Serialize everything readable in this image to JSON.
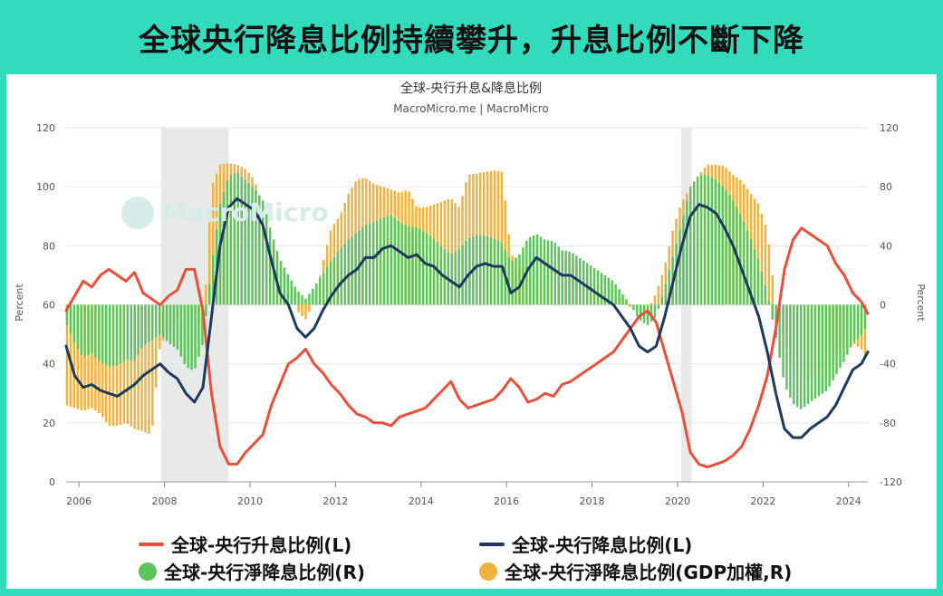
{
  "banner": {
    "title": "全球央行降息比例持續攀升，升息比例不斷下降"
  },
  "chart_data": {
    "type": "line",
    "title": "全球-央行升息&降息比例",
    "subtitle": "MacroMicro.me | MacroMicro",
    "watermark": "MacroMicro",
    "ylabel_left": "Percent",
    "ylabel_right": "Percent",
    "ylim_left": [
      0,
      120
    ],
    "ylim_right": [
      -120,
      120
    ],
    "yticks_left": [
      0,
      20,
      40,
      60,
      80,
      100,
      120
    ],
    "yticks_right": [
      -120,
      -80,
      -40,
      0,
      40,
      80,
      120
    ],
    "xlim": [
      2005.7,
      2024.45
    ],
    "xticks": [
      2006,
      2008,
      2010,
      2012,
      2014,
      2016,
      2018,
      2020,
      2022,
      2024
    ],
    "recessions": [
      [
        2007.92,
        2009.5
      ],
      [
        2020.08,
        2020.33
      ]
    ],
    "colors": {
      "hike": "#e8503a",
      "cut": "#1c3a5e",
      "net_green": "#5cc45c",
      "net_gdp": "#f2b13c",
      "recession": "#e8eaea"
    },
    "series": [
      {
        "name": "全球-央行升息比例(L)",
        "axis": "left",
        "kind": "line",
        "color": "#e8503a",
        "x": [
          2005.7,
          2005.9,
          2006.1,
          2006.3,
          2006.5,
          2006.7,
          2006.9,
          2007.1,
          2007.3,
          2007.5,
          2007.7,
          2007.9,
          2008.1,
          2008.3,
          2008.5,
          2008.7,
          2008.9,
          2009.1,
          2009.3,
          2009.5,
          2009.7,
          2009.9,
          2010.1,
          2010.3,
          2010.5,
          2010.7,
          2010.9,
          2011.1,
          2011.3,
          2011.5,
          2011.7,
          2011.9,
          2012.1,
          2012.3,
          2012.5,
          2012.7,
          2012.9,
          2013.1,
          2013.3,
          2013.5,
          2013.7,
          2013.9,
          2014.1,
          2014.3,
          2014.5,
          2014.7,
          2014.9,
          2015.1,
          2015.3,
          2015.5,
          2015.7,
          2015.9,
          2016.1,
          2016.3,
          2016.5,
          2016.7,
          2016.9,
          2017.1,
          2017.3,
          2017.5,
          2017.7,
          2017.9,
          2018.1,
          2018.3,
          2018.5,
          2018.7,
          2018.9,
          2019.1,
          2019.3,
          2019.5,
          2019.7,
          2019.9,
          2020.1,
          2020.3,
          2020.5,
          2020.7,
          2020.9,
          2021.1,
          2021.3,
          2021.5,
          2021.7,
          2021.9,
          2022.1,
          2022.3,
          2022.5,
          2022.7,
          2022.9,
          2023.1,
          2023.3,
          2023.5,
          2023.7,
          2023.9,
          2024.1,
          2024.3,
          2024.45
        ],
        "y": [
          58,
          63,
          68,
          66,
          70,
          72,
          70,
          68,
          71,
          64,
          62,
          60,
          63,
          65,
          72,
          72,
          58,
          30,
          12,
          6,
          6,
          10,
          13,
          16,
          26,
          33,
          40,
          42,
          45,
          40,
          37,
          33,
          30,
          26,
          23,
          22,
          20,
          20,
          19,
          22,
          23,
          24,
          25,
          28,
          31,
          34,
          28,
          25,
          26,
          27,
          28,
          31,
          35,
          32,
          27,
          28,
          30,
          29,
          33,
          34,
          36,
          38,
          40,
          42,
          44,
          48,
          52,
          56,
          58,
          54,
          44,
          34,
          24,
          10,
          6,
          5,
          6,
          7,
          9,
          12,
          18,
          26,
          36,
          52,
          72,
          82,
          86,
          84,
          82,
          80,
          74,
          70,
          64,
          61,
          57
        ]
      },
      {
        "name": "全球-央行降息比例(L)",
        "axis": "left",
        "kind": "line",
        "color": "#1c3a5e",
        "x": [
          2005.7,
          2005.9,
          2006.1,
          2006.3,
          2006.5,
          2006.7,
          2006.9,
          2007.1,
          2007.3,
          2007.5,
          2007.7,
          2007.9,
          2008.1,
          2008.3,
          2008.5,
          2008.7,
          2008.9,
          2009.1,
          2009.3,
          2009.5,
          2009.7,
          2009.9,
          2010.1,
          2010.3,
          2010.5,
          2010.7,
          2010.9,
          2011.1,
          2011.3,
          2011.5,
          2011.7,
          2011.9,
          2012.1,
          2012.3,
          2012.5,
          2012.7,
          2012.9,
          2013.1,
          2013.3,
          2013.5,
          2013.7,
          2013.9,
          2014.1,
          2014.3,
          2014.5,
          2014.7,
          2014.9,
          2015.1,
          2015.3,
          2015.5,
          2015.7,
          2015.9,
          2016.1,
          2016.3,
          2016.5,
          2016.7,
          2016.9,
          2017.1,
          2017.3,
          2017.5,
          2017.7,
          2017.9,
          2018.1,
          2018.3,
          2018.5,
          2018.7,
          2018.9,
          2019.1,
          2019.3,
          2019.5,
          2019.7,
          2019.9,
          2020.1,
          2020.3,
          2020.5,
          2020.7,
          2020.9,
          2021.1,
          2021.3,
          2021.5,
          2021.7,
          2021.9,
          2022.1,
          2022.3,
          2022.5,
          2022.7,
          2022.9,
          2023.1,
          2023.3,
          2023.5,
          2023.7,
          2023.9,
          2024.1,
          2024.3,
          2024.45
        ],
        "y": [
          46,
          36,
          32,
          33,
          31,
          30,
          29,
          31,
          33,
          36,
          38,
          40,
          37,
          35,
          30,
          27,
          32,
          56,
          80,
          93,
          96,
          94,
          92,
          87,
          75,
          64,
          60,
          52,
          49,
          52,
          58,
          63,
          67,
          70,
          72,
          76,
          76,
          79,
          80,
          78,
          76,
          77,
          74,
          73,
          70,
          68,
          66,
          70,
          73,
          74,
          73,
          73,
          64,
          66,
          72,
          76,
          74,
          72,
          70,
          70,
          68,
          66,
          64,
          62,
          60,
          56,
          52,
          46,
          44,
          46,
          56,
          68,
          80,
          90,
          94,
          93,
          91,
          86,
          80,
          72,
          64,
          56,
          44,
          30,
          18,
          15,
          15,
          18,
          20,
          22,
          26,
          32,
          38,
          40,
          44
        ]
      },
      {
        "name": "全球-央行淨降息比例(R)",
        "axis": "right",
        "kind": "bar",
        "color": "#5cc45c",
        "x": [
          2005.7,
          2005.9,
          2006.1,
          2006.3,
          2006.5,
          2006.7,
          2006.9,
          2007.1,
          2007.3,
          2007.5,
          2007.7,
          2007.9,
          2008.1,
          2008.3,
          2008.5,
          2008.7,
          2008.9,
          2009.1,
          2009.3,
          2009.5,
          2009.7,
          2009.9,
          2010.1,
          2010.3,
          2010.5,
          2010.7,
          2010.9,
          2011.1,
          2011.3,
          2011.5,
          2011.7,
          2011.9,
          2012.1,
          2012.3,
          2012.5,
          2012.7,
          2012.9,
          2013.1,
          2013.3,
          2013.5,
          2013.7,
          2013.9,
          2014.1,
          2014.3,
          2014.5,
          2014.7,
          2014.9,
          2015.1,
          2015.3,
          2015.5,
          2015.7,
          2015.9,
          2016.1,
          2016.3,
          2016.5,
          2016.7,
          2016.9,
          2017.1,
          2017.3,
          2017.5,
          2017.7,
          2017.9,
          2018.1,
          2018.3,
          2018.5,
          2018.7,
          2018.9,
          2019.1,
          2019.3,
          2019.5,
          2019.7,
          2019.9,
          2020.1,
          2020.3,
          2020.5,
          2020.7,
          2020.9,
          2021.1,
          2021.3,
          2021.5,
          2021.7,
          2021.9,
          2022.1,
          2022.3,
          2022.5,
          2022.7,
          2022.9,
          2023.1,
          2023.3,
          2023.5,
          2023.7,
          2023.9,
          2024.1,
          2024.3,
          2024.45
        ],
        "y": [
          -12,
          -27,
          -36,
          -33,
          -39,
          -42,
          -41,
          -37,
          -38,
          -28,
          -24,
          -20,
          -26,
          -30,
          -42,
          -45,
          -26,
          26,
          68,
          87,
          90,
          84,
          79,
          71,
          49,
          31,
          20,
          10,
          4,
          12,
          21,
          30,
          37,
          44,
          49,
          54,
          56,
          59,
          61,
          56,
          53,
          53,
          49,
          45,
          39,
          34,
          38,
          45,
          47,
          47,
          45,
          42,
          29,
          34,
          45,
          48,
          44,
          43,
          37,
          36,
          32,
          28,
          24,
          20,
          16,
          8,
          0,
          -10,
          -14,
          -8,
          12,
          34,
          56,
          80,
          88,
          88,
          85,
          79,
          71,
          60,
          46,
          30,
          8,
          -22,
          -54,
          -67,
          -71,
          -66,
          -62,
          -58,
          -48,
          -38,
          -26,
          -21,
          -13
        ]
      },
      {
        "name": "全球-央行淨降息比例(GDP加權,R)",
        "axis": "right",
        "kind": "bar",
        "color": "#f2b13c",
        "x": [
          2005.7,
          2005.9,
          2006.1,
          2006.3,
          2006.5,
          2006.7,
          2006.9,
          2007.1,
          2007.3,
          2007.5,
          2007.7,
          2007.9,
          2008.1,
          2008.3,
          2008.5,
          2008.7,
          2008.9,
          2009.1,
          2009.3,
          2009.5,
          2009.7,
          2009.9,
          2010.1,
          2010.3,
          2010.5,
          2010.7,
          2010.9,
          2011.1,
          2011.3,
          2011.5,
          2011.7,
          2011.9,
          2012.1,
          2012.3,
          2012.5,
          2012.7,
          2012.9,
          2013.1,
          2013.3,
          2013.5,
          2013.7,
          2013.9,
          2014.1,
          2014.3,
          2014.5,
          2014.7,
          2014.9,
          2015.1,
          2015.3,
          2015.5,
          2015.7,
          2015.9,
          2016.1,
          2016.3,
          2016.5,
          2016.7,
          2016.9,
          2017.1,
          2017.3,
          2017.5,
          2017.7,
          2017.9,
          2018.1,
          2018.3,
          2018.5,
          2018.7,
          2018.9,
          2019.1,
          2019.3,
          2019.5,
          2019.7,
          2019.9,
          2020.1,
          2020.3,
          2020.5,
          2020.7,
          2020.9,
          2021.1,
          2021.3,
          2021.5,
          2021.7,
          2021.9,
          2022.1,
          2022.3,
          2022.5,
          2022.7,
          2022.9,
          2023.1,
          2023.3,
          2023.5,
          2023.7,
          2023.9,
          2024.1,
          2024.3,
          2024.45
        ],
        "y": [
          -68,
          -70,
          -72,
          -70,
          -74,
          -82,
          -82,
          -80,
          -84,
          -86,
          -88,
          -26,
          -20,
          -10,
          -6,
          -4,
          -22,
          80,
          95,
          96,
          95,
          92,
          85,
          67,
          43,
          30,
          20,
          -4,
          -10,
          2,
          28,
          52,
          60,
          75,
          85,
          86,
          82,
          80,
          78,
          76,
          78,
          66,
          66,
          68,
          70,
          72,
          66,
          88,
          89,
          90,
          91,
          90,
          35,
          26,
          26,
          30,
          34,
          36,
          34,
          32,
          28,
          20,
          14,
          10,
          6,
          4,
          -2,
          -6,
          -4,
          8,
          26,
          52,
          70,
          79,
          88,
          95,
          95,
          94,
          88,
          84,
          76,
          68,
          50,
          0,
          -24,
          -42,
          -48,
          -52,
          -46,
          -42,
          -34,
          -30,
          -26,
          -30,
          -40
        ]
      }
    ]
  },
  "legend": {
    "hike": "全球-央行升息比例(L)",
    "cut": "全球-央行降息比例(L)",
    "net": "全球-央行淨降息比例(R)",
    "net_gdp": "全球-央行淨降息比例(GDP加權,R)"
  }
}
